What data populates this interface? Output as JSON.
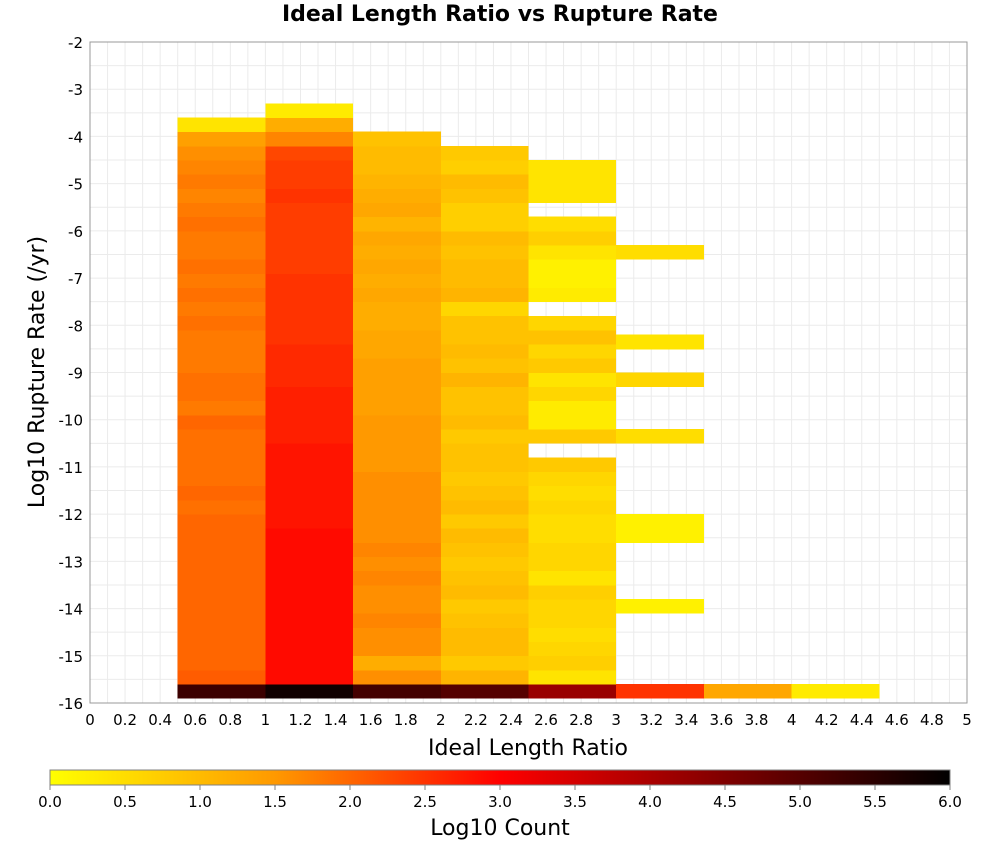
{
  "chart_data": {
    "type": "heatmap",
    "title": "Ideal Length Ratio vs Rupture Rate",
    "xlabel": "Ideal Length Ratio",
    "ylabel": "Log10 Rupture Rate (/yr)",
    "colorbar_label": "Log10 Count",
    "xlim": [
      0,
      5
    ],
    "ylim": [
      -16,
      -2
    ],
    "x_ticks": [
      0,
      0.2,
      0.4,
      0.6,
      0.8,
      1,
      1.2,
      1.4,
      1.6,
      1.8,
      2,
      2.2,
      2.4,
      2.6,
      2.8,
      3,
      3.2,
      3.4,
      3.6,
      3.8,
      4,
      4.2,
      4.4,
      4.6,
      4.8,
      5
    ],
    "x_tick_labels": [
      "0",
      "0.2",
      "0.4",
      "0.6",
      "0.8",
      "1",
      "1.2",
      "1.4",
      "1.6",
      "1.8",
      "2",
      "2.2",
      "2.4",
      "2.6",
      "2.8",
      "3",
      "3.2",
      "3.4",
      "3.6",
      "3.8",
      "4",
      "4.2",
      "4.4",
      "4.6",
      "4.8",
      "5"
    ],
    "y_ticks": [
      -2,
      -3,
      -4,
      -5,
      -6,
      -7,
      -8,
      -9,
      -10,
      -11,
      -12,
      -13,
      -14,
      -15,
      -16
    ],
    "y_tick_labels": [
      "-2",
      "-3",
      "-4",
      "-5",
      "-6",
      "-7",
      "-8",
      "-9",
      "-10",
      "-11",
      "-12",
      "-13",
      "-14",
      "-15",
      "-16"
    ],
    "color_scale": {
      "min": 0,
      "max": 6,
      "ticks": [
        0,
        0.5,
        1,
        1.5,
        2,
        2.5,
        3,
        3.5,
        4,
        4.5,
        5,
        5.5,
        6
      ],
      "tick_labels": [
        "0.0",
        "0.5",
        "1.0",
        "1.5",
        "2.0",
        "2.5",
        "3.0",
        "3.5",
        "4.0",
        "4.5",
        "5.0",
        "5.5",
        "6.0"
      ],
      "colors": [
        "#ffff00",
        "#ff9900",
        "#ff0000",
        "#000000"
      ]
    },
    "grid": true,
    "bin_edges_x": [
      0.5,
      1.0,
      1.5,
      2.0,
      2.5,
      3.0,
      3.5,
      4.0,
      4.5
    ],
    "bin_height_y": 0.3,
    "columns": [
      {
        "x_range": [
          0.5,
          1.0
        ],
        "cells": [
          [
            -15.9,
            5.3
          ],
          [
            -15.6,
            2.1
          ],
          [
            -15.3,
            2.0
          ],
          [
            -15.0,
            2.0
          ],
          [
            -14.7,
            2.0
          ],
          [
            -14.4,
            2.0
          ],
          [
            -14.1,
            2.0
          ],
          [
            -13.8,
            2.0
          ],
          [
            -13.5,
            2.0
          ],
          [
            -13.2,
            2.0
          ],
          [
            -12.9,
            2.0
          ],
          [
            -12.6,
            2.0
          ],
          [
            -12.3,
            2.0
          ],
          [
            -12.0,
            1.9
          ],
          [
            -11.7,
            2.0
          ],
          [
            -11.4,
            1.9
          ],
          [
            -11.1,
            1.9
          ],
          [
            -10.8,
            1.9
          ],
          [
            -10.5,
            1.9
          ],
          [
            -10.2,
            2.0
          ],
          [
            -9.9,
            1.8
          ],
          [
            -9.6,
            1.9
          ],
          [
            -9.3,
            1.9
          ],
          [
            -9.0,
            1.8
          ],
          [
            -8.7,
            1.8
          ],
          [
            -8.4,
            1.8
          ],
          [
            -8.1,
            1.9
          ],
          [
            -7.8,
            1.8
          ],
          [
            -7.5,
            1.9
          ],
          [
            -7.2,
            1.8
          ],
          [
            -6.9,
            1.9
          ],
          [
            -6.6,
            1.8
          ],
          [
            -6.3,
            1.8
          ],
          [
            -6.0,
            1.9
          ],
          [
            -5.7,
            1.8
          ],
          [
            -5.4,
            1.7
          ],
          [
            -5.1,
            1.8
          ],
          [
            -4.8,
            1.7
          ],
          [
            -4.5,
            1.6
          ],
          [
            -4.2,
            1.4
          ],
          [
            -3.9,
            0.4
          ]
        ]
      },
      {
        "x_range": [
          1.0,
          1.5
        ],
        "cells": [
          [
            -15.9,
            5.8
          ],
          [
            -15.6,
            2.9
          ],
          [
            -15.3,
            2.9
          ],
          [
            -15.0,
            2.9
          ],
          [
            -14.7,
            2.9
          ],
          [
            -14.4,
            2.9
          ],
          [
            -14.1,
            2.9
          ],
          [
            -13.8,
            2.9
          ],
          [
            -13.5,
            2.9
          ],
          [
            -13.2,
            2.9
          ],
          [
            -12.9,
            2.9
          ],
          [
            -12.6,
            2.9
          ],
          [
            -12.3,
            2.8
          ],
          [
            -12.0,
            2.8
          ],
          [
            -11.7,
            2.8
          ],
          [
            -11.4,
            2.8
          ],
          [
            -11.1,
            2.8
          ],
          [
            -10.8,
            2.8
          ],
          [
            -10.5,
            2.7
          ],
          [
            -10.2,
            2.7
          ],
          [
            -9.9,
            2.7
          ],
          [
            -9.6,
            2.7
          ],
          [
            -9.3,
            2.6
          ],
          [
            -9.0,
            2.6
          ],
          [
            -8.7,
            2.6
          ],
          [
            -8.4,
            2.5
          ],
          [
            -8.1,
            2.5
          ],
          [
            -7.8,
            2.5
          ],
          [
            -7.5,
            2.5
          ],
          [
            -7.2,
            2.5
          ],
          [
            -6.9,
            2.4
          ],
          [
            -6.6,
            2.4
          ],
          [
            -6.3,
            2.4
          ],
          [
            -6.0,
            2.4
          ],
          [
            -5.7,
            2.4
          ],
          [
            -5.4,
            2.5
          ],
          [
            -5.1,
            2.4
          ],
          [
            -4.8,
            2.4
          ],
          [
            -4.5,
            2.3
          ],
          [
            -4.2,
            1.7
          ],
          [
            -3.9,
            1.2
          ],
          [
            -3.6,
            0.3
          ]
        ]
      },
      {
        "x_range": [
          1.5,
          2.0
        ],
        "cells": [
          [
            -15.9,
            5.2
          ],
          [
            -15.6,
            1.6
          ],
          [
            -15.3,
            1.2
          ],
          [
            -15.0,
            1.6
          ],
          [
            -14.7,
            1.6
          ],
          [
            -14.4,
            1.7
          ],
          [
            -14.1,
            1.6
          ],
          [
            -13.8,
            1.6
          ],
          [
            -13.5,
            1.7
          ],
          [
            -13.2,
            1.6
          ],
          [
            -12.9,
            1.7
          ],
          [
            -12.6,
            1.6
          ],
          [
            -12.3,
            1.6
          ],
          [
            -12.0,
            1.6
          ],
          [
            -11.7,
            1.6
          ],
          [
            -11.4,
            1.6
          ],
          [
            -11.1,
            1.5
          ],
          [
            -10.8,
            1.5
          ],
          [
            -10.5,
            1.5
          ],
          [
            -10.2,
            1.5
          ],
          [
            -9.9,
            1.4
          ],
          [
            -9.6,
            1.4
          ],
          [
            -9.3,
            1.4
          ],
          [
            -9.0,
            1.4
          ],
          [
            -8.7,
            1.3
          ],
          [
            -8.4,
            1.3
          ],
          [
            -8.1,
            1.2
          ],
          [
            -7.8,
            1.2
          ],
          [
            -7.5,
            1.3
          ],
          [
            -7.2,
            1.2
          ],
          [
            -6.9,
            1.3
          ],
          [
            -6.6,
            1.2
          ],
          [
            -6.3,
            1.3
          ],
          [
            -6.0,
            1.1
          ],
          [
            -5.7,
            1.3
          ],
          [
            -5.4,
            1.2
          ],
          [
            -5.1,
            1.1
          ],
          [
            -4.8,
            1.0
          ],
          [
            -4.5,
            1.0
          ],
          [
            -4.2,
            0.9
          ]
        ]
      },
      {
        "x_range": [
          2.0,
          2.5
        ],
        "cells": [
          [
            -15.9,
            5.0
          ],
          [
            -15.6,
            1.1
          ],
          [
            -15.3,
            0.8
          ],
          [
            -15.0,
            1.0
          ],
          [
            -14.7,
            1.0
          ],
          [
            -14.4,
            0.9
          ],
          [
            -14.1,
            0.8
          ],
          [
            -13.8,
            1.0
          ],
          [
            -13.5,
            0.9
          ],
          [
            -13.2,
            0.8
          ],
          [
            -12.9,
            0.9
          ],
          [
            -12.6,
            1.0
          ],
          [
            -12.3,
            0.8
          ],
          [
            -12.0,
            1.0
          ],
          [
            -11.7,
            0.9
          ],
          [
            -11.4,
            0.8
          ],
          [
            -11.1,
            0.9
          ],
          [
            -10.8,
            0.9
          ],
          [
            -10.5,
            0.8
          ],
          [
            -10.2,
            1.0
          ],
          [
            -9.9,
            0.9
          ],
          [
            -9.6,
            0.9
          ],
          [
            -9.3,
            1.1
          ],
          [
            -9.0,
            0.9
          ],
          [
            -8.7,
            1.0
          ],
          [
            -8.4,
            0.9
          ],
          [
            -8.1,
            0.9
          ],
          [
            -7.8,
            0.6
          ],
          [
            -7.5,
            1.1
          ],
          [
            -7.2,
            1.0
          ],
          [
            -6.9,
            1.0
          ],
          [
            -6.6,
            0.9
          ],
          [
            -6.3,
            1.0
          ],
          [
            -6.0,
            0.7
          ],
          [
            -5.7,
            0.7
          ],
          [
            -5.4,
            0.9
          ],
          [
            -5.1,
            1.0
          ],
          [
            -4.8,
            0.7
          ],
          [
            -4.5,
            0.8
          ]
        ]
      },
      {
        "x_range": [
          2.5,
          3.0
        ],
        "cells": [
          [
            -15.9,
            4.2
          ],
          [
            -15.6,
            0.4
          ],
          [
            -15.3,
            0.7
          ],
          [
            -15.0,
            0.6
          ],
          [
            -14.7,
            0.5
          ],
          [
            -14.4,
            0.6
          ],
          [
            -14.1,
            0.6
          ],
          [
            -13.8,
            0.7
          ],
          [
            -13.5,
            0.4
          ],
          [
            -13.2,
            0.6
          ],
          [
            -12.9,
            0.6
          ],
          [
            -12.6,
            0.5
          ],
          [
            -12.3,
            0.5
          ],
          [
            -12.0,
            0.6
          ],
          [
            -11.7,
            0.5
          ],
          [
            -11.4,
            0.6
          ],
          [
            -11.1,
            0.8
          ],
          [
            -10.5,
            0.8
          ],
          [
            -10.2,
            0.3
          ],
          [
            -9.9,
            0.3
          ],
          [
            -9.6,
            0.6
          ],
          [
            -9.3,
            0.4
          ],
          [
            -9.0,
            0.8
          ],
          [
            -8.7,
            0.6
          ],
          [
            -8.4,
            0.9
          ],
          [
            -8.1,
            0.6
          ],
          [
            -7.5,
            0.3
          ],
          [
            -7.2,
            0.2
          ],
          [
            -6.9,
            0.2
          ],
          [
            -6.6,
            0.4
          ],
          [
            -6.3,
            0.7
          ],
          [
            -6.0,
            0.5
          ],
          [
            -5.4,
            0.4
          ],
          [
            -5.1,
            0.4
          ],
          [
            -4.8,
            0.4
          ]
        ]
      },
      {
        "x_range": [
          3.0,
          3.5
        ],
        "cells": [
          [
            -15.9,
            2.5
          ],
          [
            -14.1,
            0.2
          ],
          [
            -12.6,
            0.2
          ],
          [
            -12.3,
            0.2
          ],
          [
            -10.5,
            0.5
          ],
          [
            -9.3,
            0.6
          ],
          [
            -8.5,
            0.4
          ],
          [
            -6.6,
            0.5
          ]
        ]
      },
      {
        "x_range": [
          3.5,
          4.0
        ],
        "cells": [
          [
            -15.9,
            1.3
          ]
        ]
      },
      {
        "x_range": [
          4.0,
          4.5
        ],
        "cells": [
          [
            -15.9,
            0.3
          ]
        ]
      }
    ]
  }
}
